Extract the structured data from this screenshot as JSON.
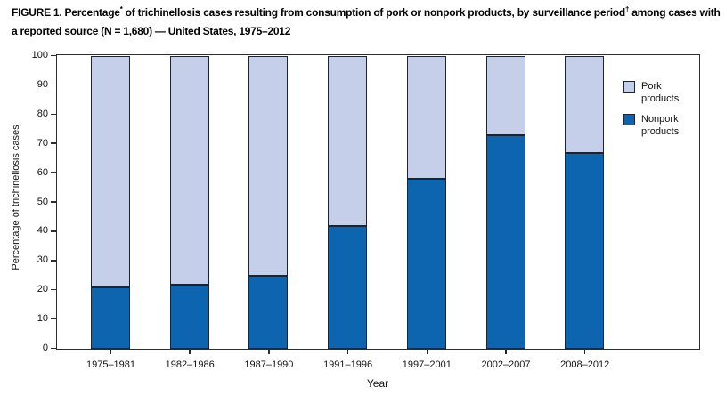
{
  "title": {
    "seg1": "FIGURE 1. Percentage",
    "sup1": "*",
    "seg2": " of trichinellosis cases resulting from consumption of pork or nonpork products, by surveillance period",
    "sup2": "†",
    "seg3": " among cases with a reported source (N = 1,680) — United States, 1975–2012"
  },
  "chart_data": {
    "type": "bar",
    "stacked": true,
    "categories": [
      "1975–1981",
      "1982–1986",
      "1987–1990",
      "1991–1996",
      "1997–2001",
      "2002–2007",
      "2008–2012"
    ],
    "series": [
      {
        "name": "Nonpork products",
        "color": "#0e65af",
        "values": [
          21,
          22,
          25,
          42,
          58,
          73,
          67
        ]
      },
      {
        "name": "Pork products",
        "color": "#c6cfe9",
        "values": [
          79,
          78,
          75,
          58,
          42,
          27,
          33
        ]
      }
    ],
    "xlabel": "Year",
    "ylabel": "Percentage of trichinellosis cases",
    "ylim": [
      0,
      100
    ],
    "yticks": [
      0,
      10,
      20,
      30,
      40,
      50,
      60,
      70,
      80,
      90,
      100
    ],
    "grid": false,
    "legend_position": "inside-top-right"
  },
  "legend": {
    "items": [
      {
        "label": "Pork products",
        "color": "#c6cfe9"
      },
      {
        "label": "Nonpork products",
        "color": "#0e65af"
      }
    ]
  },
  "colors": {
    "pork": "#c6cfe9",
    "nonpork": "#0e65af",
    "bar_border": "#1b2433",
    "axis": "#2e2e2e"
  }
}
